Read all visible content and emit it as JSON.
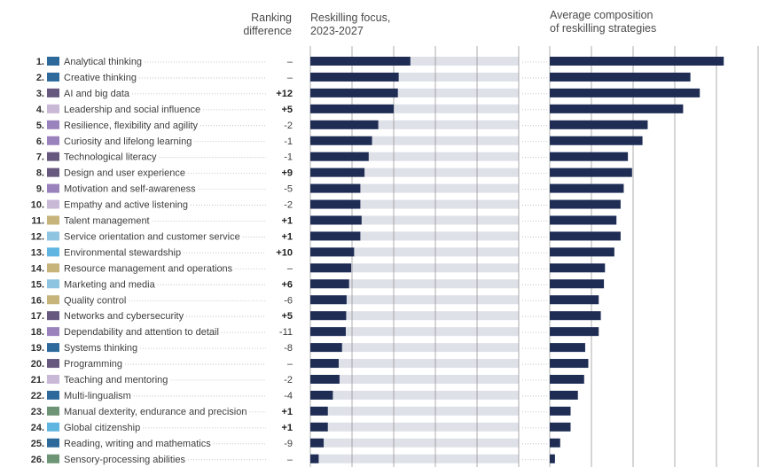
{
  "headers": {
    "ranking": [
      "Ranking",
      "difference"
    ],
    "focus": [
      "Reskilling focus,",
      "2023-2027"
    ],
    "composition": [
      "Average composition",
      "of reskilling strategies"
    ]
  },
  "colors": {
    "bar": "#1f2d55",
    "track": "#dfe1e8",
    "grid": "#8a8a8a",
    "dots": "#b5b5b5",
    "categories": {
      "cognitive": "#2d6a9b",
      "management": "#7a6797",
      "selfefficacy": "#9a82bc",
      "engagement": "#c9b8d6",
      "technology": "#675880",
      "ethics": "#c6b47a",
      "attitudes": "#8ec4df",
      "physical": "#6d9474",
      "citizenship": "#5fb6e0"
    }
  },
  "chart_data": [
    {
      "type": "bar",
      "title": "Reskilling focus, 2023-2027",
      "orientation": "horizontal",
      "axis_max": 5,
      "gridlines": [
        0,
        1,
        2,
        3,
        4,
        5
      ],
      "categories": [
        "Analytical thinking",
        "Creative thinking",
        "AI and big data",
        "Leadership and social influence",
        "Resilience, flexibility and agility",
        "Curiosity and lifelong learning",
        "Technological literacy",
        "Design and user experience",
        "Motivation and self-awareness",
        "Empathy and active listening",
        "Talent management",
        "Service orientation and customer service",
        "Environmental stewardship",
        "Resource management and operations",
        "Marketing and media",
        "Quality control",
        "Networks and cybersecurity",
        "Dependability and attention to detail",
        "Systems thinking",
        "Programming",
        "Teaching and mentoring",
        "Multi-lingualism",
        "Manual dexterity, endurance and precision",
        "Global citizenship",
        "Reading, writing and mathematics",
        "Sensory-processing abilities"
      ],
      "values": [
        2.4,
        2.12,
        2.1,
        2.0,
        1.63,
        1.48,
        1.4,
        1.3,
        1.2,
        1.2,
        1.23,
        1.2,
        1.05,
        0.98,
        0.93,
        0.87,
        0.86,
        0.85,
        0.76,
        0.68,
        0.7,
        0.54,
        0.42,
        0.42,
        0.32,
        0.2
      ]
    },
    {
      "type": "bar",
      "title": "Average composition of reskilling strategies",
      "orientation": "horizontal",
      "axis_max": 100,
      "gridlines": [
        0,
        20,
        40,
        60,
        80,
        100
      ],
      "values": [
        83.5,
        67.5,
        72,
        64,
        47,
        44.5,
        37.5,
        39.5,
        35.5,
        34,
        32,
        34,
        31,
        26.5,
        26,
        23.5,
        24.5,
        23.5,
        17,
        18.5,
        16.5,
        13.5,
        10,
        10,
        5,
        2.5
      ]
    }
  ],
  "rows": [
    {
      "num": "1.",
      "label": "Analytical thinking",
      "rank": "–",
      "bold": false,
      "cat": "cognitive"
    },
    {
      "num": "2.",
      "label": "Creative thinking",
      "rank": "–",
      "bold": false,
      "cat": "cognitive"
    },
    {
      "num": "3.",
      "label": "AI and big data",
      "rank": "+12",
      "bold": true,
      "cat": "technology"
    },
    {
      "num": "4.",
      "label": "Leadership and social influence",
      "rank": "+5",
      "bold": true,
      "cat": "engagement"
    },
    {
      "num": "5.",
      "label": "Resilience, flexibility and agility",
      "rank": "-2",
      "bold": false,
      "cat": "selfefficacy"
    },
    {
      "num": "6.",
      "label": "Curiosity and lifelong learning",
      "rank": "-1",
      "bold": false,
      "cat": "selfefficacy"
    },
    {
      "num": "7.",
      "label": "Technological literacy",
      "rank": "-1",
      "bold": false,
      "cat": "technology"
    },
    {
      "num": "8.",
      "label": "Design and user experience",
      "rank": "+9",
      "bold": true,
      "cat": "technology"
    },
    {
      "num": "9.",
      "label": "Motivation and self-awareness",
      "rank": "-5",
      "bold": false,
      "cat": "selfefficacy"
    },
    {
      "num": "10.",
      "label": "Empathy and active listening",
      "rank": "-2",
      "bold": false,
      "cat": "engagement"
    },
    {
      "num": "11.",
      "label": "Talent management",
      "rank": "+1",
      "bold": true,
      "cat": "ethics"
    },
    {
      "num": "12.",
      "label": "Service orientation and customer service",
      "rank": "+1",
      "bold": true,
      "cat": "attitudes"
    },
    {
      "num": "13.",
      "label": "Environmental stewardship",
      "rank": "+10",
      "bold": true,
      "cat": "citizenship"
    },
    {
      "num": "14.",
      "label": "Resource management and operations",
      "rank": "–",
      "bold": false,
      "cat": "ethics"
    },
    {
      "num": "15.",
      "label": "Marketing and media",
      "rank": "+6",
      "bold": true,
      "cat": "attitudes"
    },
    {
      "num": "16.",
      "label": "Quality control",
      "rank": "-6",
      "bold": false,
      "cat": "ethics"
    },
    {
      "num": "17.",
      "label": "Networks and cybersecurity",
      "rank": "+5",
      "bold": true,
      "cat": "technology"
    },
    {
      "num": "18.",
      "label": "Dependability and attention to detail",
      "rank": "-11",
      "bold": false,
      "cat": "selfefficacy"
    },
    {
      "num": "19.",
      "label": "Systems thinking",
      "rank": "-8",
      "bold": false,
      "cat": "cognitive"
    },
    {
      "num": "20.",
      "label": "Programming",
      "rank": "–",
      "bold": false,
      "cat": "technology"
    },
    {
      "num": "21.",
      "label": "Teaching and mentoring",
      "rank": "-2",
      "bold": false,
      "cat": "engagement"
    },
    {
      "num": "22.",
      "label": "Multi-lingualism",
      "rank": "-4",
      "bold": false,
      "cat": "cognitive"
    },
    {
      "num": "23.",
      "label": "Manual dexterity, endurance and precision",
      "rank": "+1",
      "bold": true,
      "cat": "physical"
    },
    {
      "num": "24.",
      "label": "Global citizenship",
      "rank": "+1",
      "bold": true,
      "cat": "citizenship"
    },
    {
      "num": "25.",
      "label": "Reading, writing and mathematics",
      "rank": "-9",
      "bold": false,
      "cat": "cognitive"
    },
    {
      "num": "26.",
      "label": "Sensory-processing abilities",
      "rank": "–",
      "bold": false,
      "cat": "physical"
    }
  ]
}
